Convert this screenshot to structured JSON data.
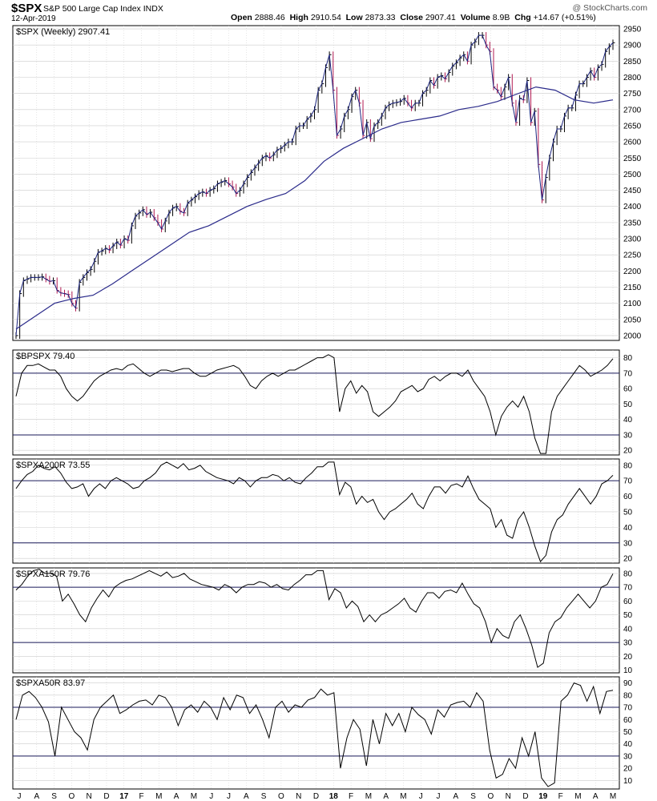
{
  "header": {
    "symbol": "$SPX",
    "name": "S&P 500 Large Cap Index",
    "exchange": "INDX",
    "date": "12-Apr-2019",
    "open_label": "Open",
    "open": "2888.46",
    "high_label": "High",
    "high": "2910.54",
    "low_label": "Low",
    "low": "2873.33",
    "close_label": "Close",
    "close": "2907.41",
    "volume_label": "Volume",
    "volume": "8.9B",
    "chg_label": "Chg",
    "chg": "+14.67 (+0.51%)",
    "logo": "@ StockCharts.com"
  },
  "x_axis_labels": [
    "J",
    "A",
    "S",
    "O",
    "N",
    "D",
    "17",
    "F",
    "M",
    "A",
    "M",
    "J",
    "J",
    "A",
    "S",
    "O",
    "N",
    "D",
    "18",
    "F",
    "M",
    "A",
    "M",
    "J",
    "J",
    "A",
    "S",
    "O",
    "N",
    "D",
    "19",
    "F",
    "M",
    "A",
    "M"
  ],
  "colors": {
    "ma": "#2a2a8a",
    "up_bar": "#000000",
    "down_bar": "#b01850",
    "ref_line": "#1a1a5a",
    "grid": "#cccccc"
  },
  "chart_data": [
    {
      "id": "price",
      "type": "line",
      "label": "$SPX (Weekly) 2907.41",
      "series": [
        {
          "name": "$SPX",
          "values": [
            2000,
            2130,
            2170,
            2175,
            2180,
            2180,
            2180,
            2182,
            2175,
            2168,
            2170,
            2140,
            2132,
            2130,
            2127,
            2100,
            2085,
            2165,
            2180,
            2195,
            2205,
            2230,
            2258,
            2262,
            2270,
            2265,
            2278,
            2290,
            2280,
            2300,
            2295,
            2340,
            2370,
            2380,
            2390,
            2375,
            2382,
            2365,
            2350,
            2330,
            2355,
            2380,
            2395,
            2400,
            2385,
            2380,
            2410,
            2420,
            2430,
            2440,
            2445,
            2440,
            2450,
            2455,
            2470,
            2475,
            2480,
            2470,
            2460,
            2440,
            2450,
            2470,
            2490,
            2505,
            2520,
            2535,
            2550,
            2557,
            2550,
            2560,
            2575,
            2580,
            2590,
            2600,
            2600,
            2640,
            2650,
            2650,
            2670,
            2680,
            2700,
            2760,
            2780,
            2830,
            2870,
            2760,
            2620,
            2640,
            2680,
            2700,
            2740,
            2760,
            2720,
            2620,
            2660,
            2610,
            2650,
            2660,
            2680,
            2705,
            2715,
            2720,
            2722,
            2725,
            2735,
            2720,
            2705,
            2720,
            2720,
            2750,
            2760,
            2790,
            2775,
            2800,
            2805,
            2795,
            2815,
            2835,
            2845,
            2860,
            2870,
            2850,
            2900,
            2910,
            2930,
            2930,
            2900,
            2880,
            2770,
            2760,
            2740,
            2770,
            2800,
            2720,
            2660,
            2735,
            2730,
            2790,
            2660,
            2695,
            2530,
            2420,
            2490,
            2550,
            2600,
            2640,
            2640,
            2680,
            2705,
            2705,
            2745,
            2780,
            2780,
            2800,
            2820,
            2800,
            2830,
            2840,
            2880,
            2895,
            2907
          ]
        },
        {
          "name": "40-week MA",
          "values": [
            2020,
            2060,
            2100,
            2115,
            2125,
            2160,
            2200,
            2240,
            2280,
            2320,
            2340,
            2370,
            2400,
            2422,
            2440,
            2480,
            2540,
            2580,
            2610,
            2640,
            2660,
            2670,
            2680,
            2700,
            2710,
            2725,
            2748,
            2770,
            2760,
            2730,
            2720,
            2730
          ]
        }
      ],
      "ylim": [
        1985,
        2960
      ],
      "yticks": [
        2000,
        2050,
        2100,
        2150,
        2200,
        2250,
        2300,
        2350,
        2400,
        2450,
        2500,
        2550,
        2600,
        2650,
        2700,
        2750,
        2800,
        2850,
        2900,
        2950
      ]
    },
    {
      "id": "bpspx",
      "type": "line",
      "label": "$BPSPX 79.40",
      "values": [
        55,
        70,
        75,
        75,
        76,
        74,
        72,
        72,
        68,
        60,
        55,
        52,
        55,
        60,
        65,
        68,
        70,
        72,
        73,
        72,
        75,
        76,
        73,
        70,
        68,
        70,
        72,
        72,
        71,
        72,
        73,
        73,
        70,
        68,
        68,
        70,
        72,
        73,
        74,
        75,
        73,
        68,
        62,
        60,
        65,
        68,
        70,
        68,
        70,
        72,
        72,
        74,
        76,
        78,
        80,
        80,
        82,
        80,
        45,
        60,
        65,
        57,
        62,
        58,
        45,
        42,
        45,
        48,
        52,
        58,
        60,
        62,
        58,
        60,
        66,
        68,
        65,
        68,
        70,
        70,
        68,
        72,
        65,
        60,
        55,
        45,
        30,
        42,
        48,
        52,
        48,
        55,
        45,
        28,
        18,
        18,
        45,
        55,
        60,
        65,
        70,
        75,
        72,
        68,
        70,
        72,
        75,
        79.4
      ],
      "ref_lines": [
        70,
        30
      ],
      "ylim": [
        17,
        85
      ],
      "yticks": [
        20,
        30,
        40,
        50,
        60,
        70,
        80
      ]
    },
    {
      "id": "spxa200r",
      "type": "line",
      "label": "$SPXA200R 73.55",
      "values": [
        65,
        70,
        74,
        76,
        80,
        78,
        77,
        79,
        75,
        69,
        65,
        66,
        68,
        60,
        65,
        68,
        65,
        70,
        72,
        70,
        68,
        65,
        66,
        70,
        72,
        75,
        80,
        82,
        80,
        78,
        81,
        77,
        78,
        80,
        76,
        74,
        72,
        71,
        70,
        68,
        72,
        70,
        66,
        70,
        72,
        72,
        74,
        73,
        70,
        72,
        69,
        68,
        72,
        75,
        79,
        79,
        82,
        82,
        61,
        69,
        66,
        55,
        60,
        56,
        58,
        50,
        45,
        50,
        52,
        55,
        58,
        62,
        55,
        52,
        60,
        66,
        66,
        62,
        67,
        68,
        66,
        73,
        65,
        58,
        55,
        52,
        40,
        45,
        35,
        33,
        45,
        50,
        40,
        28,
        18,
        22,
        37,
        45,
        48,
        55,
        60,
        65,
        60,
        55,
        60,
        68,
        70,
        73.55
      ],
      "ref_lines": [
        70,
        30
      ],
      "ylim": [
        17,
        84
      ],
      "yticks": [
        20,
        30,
        40,
        50,
        60,
        70,
        80
      ]
    },
    {
      "id": "spxa150r",
      "type": "line",
      "label": "$SPXA150R 79.76",
      "values": [
        68,
        72,
        78,
        82,
        83,
        80,
        80,
        78,
        60,
        65,
        58,
        50,
        45,
        55,
        62,
        68,
        63,
        70,
        73,
        75,
        76,
        78,
        80,
        82,
        80,
        78,
        81,
        77,
        78,
        80,
        76,
        74,
        72,
        71,
        70,
        68,
        72,
        70,
        66,
        70,
        72,
        72,
        74,
        73,
        70,
        72,
        69,
        68,
        72,
        75,
        79,
        79,
        82,
        82,
        61,
        69,
        66,
        55,
        60,
        56,
        45,
        50,
        45,
        50,
        52,
        55,
        58,
        62,
        55,
        52,
        60,
        66,
        66,
        62,
        67,
        68,
        66,
        73,
        65,
        58,
        55,
        45,
        30,
        40,
        35,
        33,
        45,
        50,
        40,
        28,
        12,
        15,
        37,
        45,
        48,
        55,
        60,
        65,
        60,
        55,
        60,
        70,
        72,
        79.76
      ],
      "ref_lines": [
        70,
        30
      ],
      "ylim": [
        8,
        84
      ],
      "yticks": [
        10,
        20,
        30,
        40,
        50,
        60,
        70,
        80
      ]
    },
    {
      "id": "spxa50r",
      "type": "line",
      "label": "$SPXA50R 83.97",
      "values": [
        60,
        80,
        83,
        78,
        70,
        58,
        30,
        70,
        60,
        50,
        45,
        35,
        60,
        70,
        75,
        80,
        65,
        68,
        72,
        75,
        76,
        72,
        80,
        78,
        70,
        55,
        68,
        72,
        66,
        75,
        70,
        60,
        78,
        68,
        80,
        78,
        65,
        72,
        60,
        45,
        70,
        75,
        66,
        72,
        70,
        76,
        78,
        85,
        80,
        82,
        20,
        45,
        60,
        52,
        22,
        60,
        40,
        65,
        55,
        65,
        50,
        70,
        64,
        60,
        48,
        68,
        62,
        72,
        74,
        75,
        70,
        82,
        75,
        35,
        12,
        15,
        28,
        20,
        45,
        30,
        50,
        12,
        5,
        8,
        75,
        80,
        90,
        88,
        75,
        87,
        65,
        83,
        83.97
      ],
      "ref_lines": [
        70,
        30
      ],
      "ylim": [
        3,
        95
      ],
      "yticks": [
        10,
        20,
        30,
        40,
        50,
        60,
        70,
        80,
        90
      ]
    }
  ]
}
